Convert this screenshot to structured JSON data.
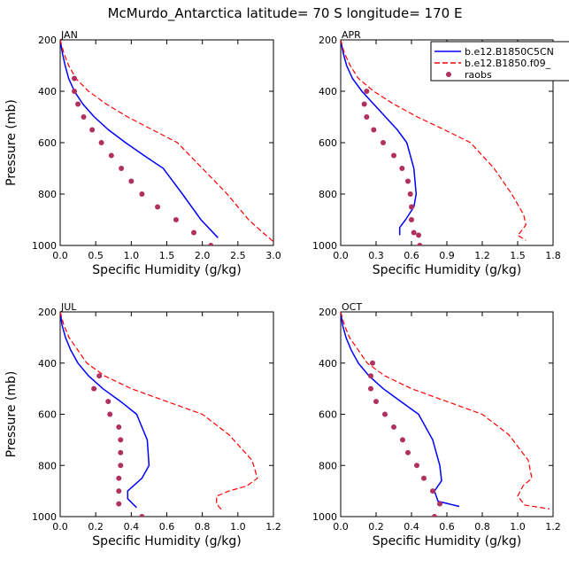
{
  "figure": {
    "title": "McMurdo_Antarctica  latitude= 70 S longitude= 170 E"
  },
  "legend": {
    "placement": "top-right of APR panel",
    "entries": [
      {
        "label": "b.e12.B1850C5CN",
        "color": "#0000ff",
        "style": "solid"
      },
      {
        "label": "b.e12.B1850.f09_",
        "color": "#ff0000",
        "style": "dashed"
      },
      {
        "label": "raobs",
        "color": "#b03060",
        "style": "dots"
      }
    ]
  },
  "chart_data": [
    {
      "type": "line",
      "panel": "JAN",
      "xlabel": "Specific Humidity (g/kg)",
      "ylabel": "Pressure (mb)",
      "xlim": [
        0,
        3.0
      ],
      "xticks": [
        "0.0",
        "0.5",
        "1.0",
        "1.5",
        "2.0",
        "2.5",
        "3.0"
      ],
      "xtick_values": [
        0,
        0.5,
        1.0,
        1.5,
        2.0,
        2.5,
        3.0
      ],
      "ylim": [
        1000,
        200
      ],
      "yticks": [
        "200",
        "400",
        "600",
        "800",
        "1000"
      ],
      "ytick_values": [
        200,
        400,
        600,
        800,
        1000
      ],
      "grid": false,
      "series": [
        {
          "name": "b.e12.B1850C5CN",
          "color": "#0000ff",
          "dash": "solid",
          "x": [
            0.0,
            0.03,
            0.07,
            0.12,
            0.2,
            0.32,
            0.48,
            0.68,
            0.92,
            1.18,
            1.45,
            1.72,
            1.98,
            2.22
          ],
          "y": [
            200,
            250,
            300,
            350,
            400,
            450,
            500,
            550,
            600,
            650,
            700,
            800,
            900,
            970
          ]
        },
        {
          "name": "b.e12.B1850.f09_",
          "color": "#ff0000",
          "dash": "dashed",
          "x": [
            0.0,
            0.05,
            0.12,
            0.22,
            0.4,
            0.65,
            0.95,
            1.3,
            1.65,
            2.0,
            2.35,
            2.65,
            2.85,
            3.0
          ],
          "y": [
            200,
            250,
            300,
            350,
            400,
            450,
            500,
            550,
            600,
            700,
            800,
            900,
            950,
            985
          ]
        },
        {
          "name": "raobs",
          "color": "#b03060",
          "dash": "points",
          "x": [
            0.2,
            0.2,
            0.25,
            0.33,
            0.45,
            0.58,
            0.72,
            0.86,
            1.0,
            1.15,
            1.37,
            1.63,
            1.88,
            2.12
          ],
          "y": [
            350,
            400,
            450,
            500,
            550,
            600,
            650,
            700,
            750,
            800,
            850,
            900,
            950,
            1000
          ]
        }
      ]
    },
    {
      "type": "line",
      "panel": "APR",
      "xlabel": "Specific Humidity (g/kg)",
      "ylabel": "",
      "xlim": [
        0,
        1.8
      ],
      "xticks": [
        "0.0",
        "0.3",
        "0.6",
        "0.9",
        "1.2",
        "1.5",
        "1.8"
      ],
      "xtick_values": [
        0,
        0.3,
        0.6,
        0.9,
        1.2,
        1.5,
        1.8
      ],
      "ylim": [
        1000,
        200
      ],
      "yticks": [
        "200",
        "400",
        "600",
        "800",
        "1000"
      ],
      "ytick_values": [
        200,
        400,
        600,
        800,
        1000
      ],
      "grid": false,
      "series": [
        {
          "name": "b.e12.B1850C5CN",
          "color": "#0000ff",
          "dash": "solid",
          "x": [
            0.0,
            0.02,
            0.05,
            0.1,
            0.18,
            0.28,
            0.38,
            0.48,
            0.56,
            0.62,
            0.64,
            0.62,
            0.55,
            0.5,
            0.5
          ],
          "y": [
            200,
            250,
            300,
            350,
            400,
            450,
            500,
            550,
            600,
            700,
            800,
            850,
            900,
            930,
            960
          ]
        },
        {
          "name": "b.e12.B1850.f09_",
          "color": "#ff0000",
          "dash": "dashed",
          "x": [
            0.0,
            0.03,
            0.08,
            0.15,
            0.28,
            0.45,
            0.65,
            0.88,
            1.1,
            1.3,
            1.45,
            1.55,
            1.57,
            1.52,
            1.5,
            1.57
          ],
          "y": [
            200,
            250,
            300,
            350,
            400,
            450,
            500,
            550,
            600,
            700,
            800,
            880,
            920,
            950,
            960,
            980
          ]
        },
        {
          "name": "raobs",
          "color": "#b03060",
          "dash": "points",
          "x": [
            0.22,
            0.2,
            0.22,
            0.28,
            0.36,
            0.45,
            0.52,
            0.57,
            0.59,
            0.6,
            0.6,
            0.62,
            0.66,
            0.67
          ],
          "y": [
            400,
            450,
            500,
            550,
            600,
            650,
            700,
            750,
            800,
            850,
            900,
            950,
            960,
            1000
          ]
        }
      ]
    },
    {
      "type": "line",
      "panel": "JUL",
      "xlabel": "Specific Humidity (g/kg)",
      "ylabel": "Pressure (mb)",
      "xlim": [
        0,
        1.2
      ],
      "xticks": [
        "0.0",
        "0.2",
        "0.4",
        "0.6",
        "0.8",
        "1.0",
        "1.2"
      ],
      "xtick_values": [
        0,
        0.2,
        0.4,
        0.6,
        0.8,
        1.0,
        1.2
      ],
      "ylim": [
        1000,
        200
      ],
      "yticks": [
        "200",
        "400",
        "600",
        "800",
        "1000"
      ],
      "ytick_values": [
        200,
        400,
        600,
        800,
        1000
      ],
      "grid": false,
      "series": [
        {
          "name": "b.e12.B1850C5CN",
          "color": "#0000ff",
          "dash": "solid",
          "x": [
            0.0,
            0.01,
            0.03,
            0.06,
            0.1,
            0.16,
            0.24,
            0.34,
            0.43,
            0.49,
            0.5,
            0.46,
            0.38,
            0.38,
            0.43
          ],
          "y": [
            200,
            250,
            300,
            350,
            400,
            450,
            500,
            550,
            600,
            700,
            800,
            850,
            900,
            930,
            965
          ]
        },
        {
          "name": "b.e12.B1850.f09_",
          "color": "#ff0000",
          "dash": "dashed",
          "x": [
            0.0,
            0.02,
            0.05,
            0.1,
            0.15,
            0.25,
            0.4,
            0.6,
            0.8,
            0.95,
            1.08,
            1.11,
            1.05,
            0.95,
            0.88,
            0.88,
            0.91
          ],
          "y": [
            200,
            250,
            300,
            350,
            400,
            450,
            500,
            550,
            600,
            680,
            780,
            850,
            880,
            900,
            920,
            950,
            975
          ]
        },
        {
          "name": "raobs",
          "color": "#b03060",
          "dash": "points",
          "x": [
            0.22,
            0.19,
            0.27,
            0.28,
            0.33,
            0.34,
            0.34,
            0.34,
            0.33,
            0.33,
            0.33,
            0.46
          ],
          "y": [
            450,
            500,
            550,
            600,
            650,
            700,
            750,
            800,
            850,
            900,
            950,
            1000
          ]
        }
      ]
    },
    {
      "type": "line",
      "panel": "OCT",
      "xlabel": "Specific Humidity (g/kg)",
      "ylabel": "",
      "xlim": [
        0,
        1.2
      ],
      "xticks": [
        "0.0",
        "0.2",
        "0.4",
        "0.6",
        "0.8",
        "1.0",
        "1.2"
      ],
      "xtick_values": [
        0,
        0.2,
        0.4,
        0.6,
        0.8,
        1.0,
        1.2
      ],
      "ylim": [
        1000,
        200
      ],
      "yticks": [
        "200",
        "400",
        "600",
        "800",
        "1000"
      ],
      "ytick_values": [
        200,
        400,
        600,
        800,
        1000
      ],
      "grid": false,
      "series": [
        {
          "name": "b.e12.B1850C5CN",
          "color": "#0000ff",
          "dash": "solid",
          "x": [
            0.0,
            0.01,
            0.03,
            0.06,
            0.1,
            0.16,
            0.24,
            0.34,
            0.44,
            0.52,
            0.56,
            0.57,
            0.53,
            0.55,
            0.67
          ],
          "y": [
            200,
            250,
            300,
            350,
            400,
            450,
            500,
            550,
            600,
            700,
            800,
            860,
            900,
            940,
            960
          ]
        },
        {
          "name": "b.e12.B1850.f09_",
          "color": "#ff0000",
          "dash": "dashed",
          "x": [
            0.0,
            0.02,
            0.05,
            0.1,
            0.15,
            0.25,
            0.4,
            0.6,
            0.8,
            0.95,
            1.06,
            1.08,
            1.03,
            1.0,
            1.04,
            1.18
          ],
          "y": [
            200,
            250,
            300,
            350,
            400,
            450,
            500,
            550,
            600,
            680,
            780,
            850,
            880,
            920,
            955,
            970
          ]
        },
        {
          "name": "raobs",
          "color": "#b03060",
          "dash": "points",
          "x": [
            0.18,
            0.17,
            0.17,
            0.2,
            0.25,
            0.3,
            0.35,
            0.38,
            0.43,
            0.47,
            0.52,
            0.56,
            0.53
          ],
          "y": [
            400,
            450,
            500,
            550,
            600,
            650,
            700,
            750,
            800,
            850,
            900,
            950,
            1000
          ]
        }
      ]
    }
  ]
}
